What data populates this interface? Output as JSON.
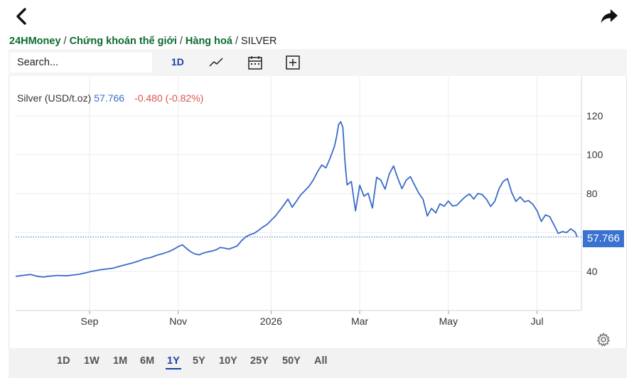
{
  "nav": {
    "back_icon": "chevron-left-icon",
    "share_icon": "share-arrow-icon"
  },
  "breadcrumb": {
    "items": [
      "24HMoney",
      "Chứng khoán thế giới",
      "Hàng hoá"
    ],
    "current": "SILVER",
    "separator": "/"
  },
  "toolbar": {
    "search_placeholder": "Search...",
    "interval": "1D",
    "icons": [
      "line-chart-icon",
      "calendar-icon",
      "add-square-icon"
    ]
  },
  "legend": {
    "name": "Silver (USD/t.oz)",
    "price": "57.766",
    "change": "-0.480 (-0.82%)"
  },
  "price_tag": "57.766",
  "colors": {
    "line": "#3a6cc8",
    "price_tag": "#3a72d0",
    "change_negative": "#d9534f",
    "breadcrumb_link": "#0d6b2f",
    "active_range": "#1c3fa8"
  },
  "chart_data": {
    "type": "line",
    "series": [
      {
        "values": [
          [
            0,
            37.5
          ],
          [
            2,
            37.8
          ],
          [
            4,
            38.1
          ],
          [
            7,
            38.5
          ],
          [
            10,
            37.6
          ],
          [
            13,
            37.2
          ],
          [
            16,
            37.6
          ],
          [
            20,
            38.0
          ],
          [
            24,
            37.8
          ],
          [
            27,
            38.2
          ],
          [
            30,
            38.6
          ],
          [
            33,
            39.3
          ],
          [
            36,
            40.1
          ],
          [
            40,
            40.9
          ],
          [
            43,
            41.3
          ],
          [
            46,
            41.7
          ],
          [
            49,
            42.6
          ],
          [
            52,
            43.5
          ],
          [
            55,
            44.3
          ],
          [
            58,
            45.3
          ],
          [
            61,
            46.5
          ],
          [
            64,
            47.2
          ],
          [
            67,
            48.4
          ],
          [
            70,
            49.3
          ],
          [
            73,
            50.4
          ],
          [
            75,
            51.5
          ],
          [
            77,
            52.8
          ],
          [
            79,
            53.7
          ],
          [
            81,
            51.8
          ],
          [
            83,
            50.1
          ],
          [
            85,
            49.0
          ],
          [
            87,
            48.6
          ],
          [
            89,
            49.5
          ],
          [
            91,
            50.1
          ],
          [
            93,
            50.5
          ],
          [
            95,
            51.2
          ],
          [
            97,
            52.4
          ],
          [
            99,
            52.0
          ],
          [
            101,
            51.5
          ],
          [
            103,
            52.3
          ],
          [
            105,
            53.2
          ],
          [
            107,
            55.8
          ],
          [
            109,
            57.8
          ],
          [
            111,
            58.9
          ],
          [
            113,
            59.6
          ],
          [
            115,
            61.1
          ],
          [
            117,
            62.8
          ],
          [
            119,
            64.1
          ],
          [
            121,
            66.3
          ],
          [
            123,
            68.4
          ],
          [
            125,
            71.2
          ],
          [
            127,
            74.1
          ],
          [
            129,
            77.2
          ],
          [
            131,
            73.0
          ],
          [
            133,
            76.1
          ],
          [
            135,
            79.3
          ],
          [
            137,
            81.5
          ],
          [
            139,
            83.8
          ],
          [
            141,
            87.0
          ],
          [
            143,
            91.2
          ],
          [
            145,
            94.7
          ],
          [
            147,
            93.2
          ],
          [
            149,
            98.4
          ],
          [
            151,
            104.2
          ],
          [
            152,
            109.1
          ],
          [
            153,
            115.4
          ],
          [
            154,
            116.9
          ],
          [
            155,
            114.0
          ],
          [
            156,
            96.7
          ],
          [
            157,
            84.5
          ],
          [
            159,
            86.2
          ],
          [
            161,
            71.1
          ],
          [
            163,
            84.3
          ],
          [
            165,
            78.7
          ],
          [
            167,
            80.2
          ],
          [
            169,
            72.6
          ],
          [
            171,
            88.4
          ],
          [
            173,
            86.9
          ],
          [
            175,
            82.3
          ],
          [
            177,
            90.1
          ],
          [
            179,
            94.2
          ],
          [
            181,
            88.0
          ],
          [
            183,
            82.5
          ],
          [
            185,
            86.9
          ],
          [
            187,
            88.7
          ],
          [
            189,
            84.3
          ],
          [
            191,
            80.2
          ],
          [
            193,
            77.1
          ],
          [
            195,
            68.5
          ],
          [
            197,
            72.4
          ],
          [
            199,
            70.1
          ],
          [
            201,
            74.8
          ],
          [
            203,
            73.5
          ],
          [
            205,
            76.2
          ],
          [
            207,
            73.6
          ],
          [
            209,
            74.1
          ],
          [
            211,
            76.3
          ],
          [
            213,
            78.4
          ],
          [
            215,
            79.8
          ],
          [
            217,
            77.2
          ],
          [
            219,
            80.1
          ],
          [
            221,
            79.5
          ],
          [
            223,
            77.2
          ],
          [
            225,
            73.4
          ],
          [
            227,
            76.1
          ],
          [
            229,
            82.6
          ],
          [
            231,
            86.3
          ],
          [
            233,
            87.7
          ],
          [
            235,
            80.5
          ],
          [
            237,
            76.0
          ],
          [
            239,
            78.3
          ],
          [
            241,
            75.8
          ],
          [
            243,
            76.4
          ],
          [
            245,
            74.5
          ],
          [
            247,
            71.2
          ],
          [
            249,
            65.7
          ],
          [
            251,
            69.1
          ],
          [
            253,
            68.2
          ],
          [
            255,
            64.0
          ],
          [
            257,
            59.6
          ],
          [
            259,
            60.5
          ],
          [
            261,
            60.0
          ],
          [
            263,
            61.9
          ],
          [
            265,
            60.3
          ],
          [
            266,
            57.8
          ]
        ]
      }
    ],
    "ylim": [
      20,
      140
    ],
    "y_ticks": [
      40,
      60,
      80,
      100,
      120
    ],
    "y_tick_labels": [
      "40",
      "",
      "80",
      "100",
      "120"
    ],
    "x_ticks": [
      {
        "pos": 35,
        "label": "Sep"
      },
      {
        "pos": 77,
        "label": "Nov"
      },
      {
        "pos": 121,
        "label": "2026"
      },
      {
        "pos": 163,
        "label": "Mar"
      },
      {
        "pos": 205,
        "label": "May"
      },
      {
        "pos": 247,
        "label": "Jul"
      }
    ],
    "last_price": 57.766,
    "grid": true
  },
  "ranges": {
    "items": [
      "1D",
      "1W",
      "1M",
      "6M",
      "1Y",
      "5Y",
      "10Y",
      "25Y",
      "50Y",
      "All"
    ],
    "active": "1Y"
  }
}
